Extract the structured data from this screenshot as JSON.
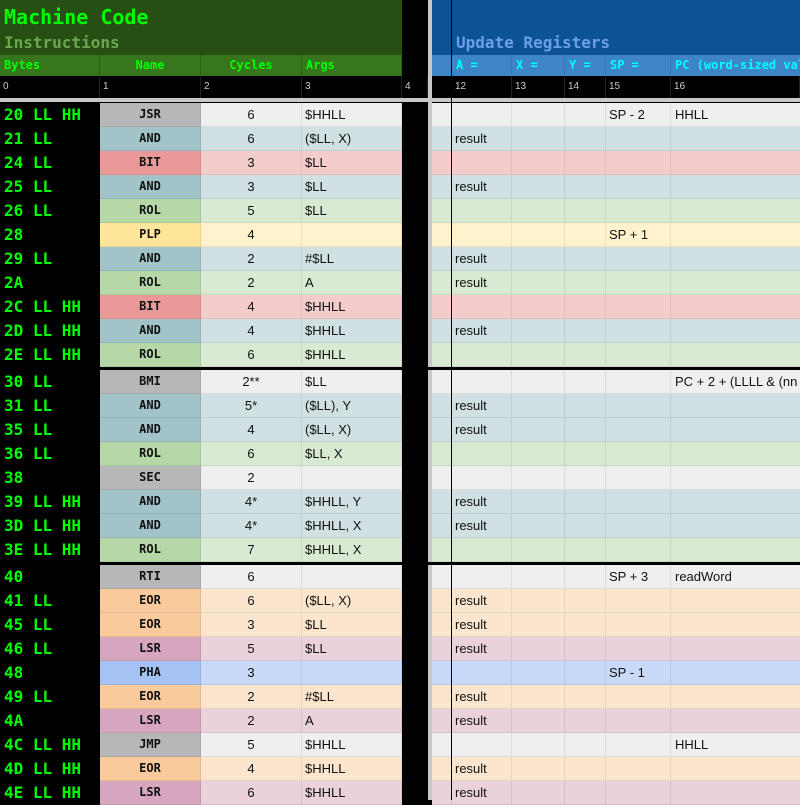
{
  "header": {
    "title": "Machine Code",
    "left_subtitle": "Instructions",
    "right_subtitle": "Update Registers",
    "columns_left": [
      "Bytes",
      "Name",
      "Cycles",
      "Args"
    ],
    "columns_right": [
      "A =",
      "X =",
      "Y =",
      "SP =",
      "PC (word-sized val"
    ],
    "column_indices": [
      "0",
      "1",
      "2",
      "3",
      "4",
      "12",
      "13",
      "14",
      "15",
      "16"
    ]
  },
  "colors": {
    "gray": [
      "#b7b7b7",
      "#efefef"
    ],
    "teal": [
      "#a2c4c9",
      "#d0e0e3"
    ],
    "red": [
      "#ea9999",
      "#f4cccc"
    ],
    "green": [
      "#b6d7a8",
      "#d9ead3"
    ],
    "yellow": [
      "#ffe599",
      "#fff2cc"
    ],
    "orange": [
      "#f9cb9c",
      "#fce5cd"
    ],
    "pink": [
      "#d5a6bd",
      "#ead1dc"
    ],
    "blue": [
      "#a4c2f4",
      "#c9daf8"
    ]
  },
  "rows": [
    {
      "bytes": "20 LL HH",
      "name": "JSR",
      "cycles": "6",
      "args": "$HHLL",
      "a": "",
      "x": "",
      "y": "",
      "sp": "SP - 2",
      "pc": "HHLL",
      "color": "gray"
    },
    {
      "bytes": "21 LL",
      "name": "AND",
      "cycles": "6",
      "args": "($LL, X)",
      "a": "result",
      "x": "",
      "y": "",
      "sp": "",
      "pc": "",
      "color": "teal"
    },
    {
      "bytes": "24 LL",
      "name": "BIT",
      "cycles": "3",
      "args": "$LL",
      "a": "",
      "x": "",
      "y": "",
      "sp": "",
      "pc": "",
      "color": "red"
    },
    {
      "bytes": "25 LL",
      "name": "AND",
      "cycles": "3",
      "args": "$LL",
      "a": "result",
      "x": "",
      "y": "",
      "sp": "",
      "pc": "",
      "color": "teal"
    },
    {
      "bytes": "26 LL",
      "name": "ROL",
      "cycles": "5",
      "args": "$LL",
      "a": "",
      "x": "",
      "y": "",
      "sp": "",
      "pc": "",
      "color": "green"
    },
    {
      "bytes": "28",
      "name": "PLP",
      "cycles": "4",
      "args": "",
      "a": "",
      "x": "",
      "y": "",
      "sp": "SP + 1",
      "pc": "",
      "color": "yellow"
    },
    {
      "bytes": "29 LL",
      "name": "AND",
      "cycles": "2",
      "args": "#$LL",
      "a": "result",
      "x": "",
      "y": "",
      "sp": "",
      "pc": "",
      "color": "teal"
    },
    {
      "bytes": "2A",
      "name": "ROL",
      "cycles": "2",
      "args": "A",
      "a": "result",
      "x": "",
      "y": "",
      "sp": "",
      "pc": "",
      "color": "green"
    },
    {
      "bytes": "2C LL HH",
      "name": "BIT",
      "cycles": "4",
      "args": "$HHLL",
      "a": "",
      "x": "",
      "y": "",
      "sp": "",
      "pc": "",
      "color": "red"
    },
    {
      "bytes": "2D LL HH",
      "name": "AND",
      "cycles": "4",
      "args": "$HHLL",
      "a": "result",
      "x": "",
      "y": "",
      "sp": "",
      "pc": "",
      "color": "teal"
    },
    {
      "bytes": "2E LL HH",
      "name": "ROL",
      "cycles": "6",
      "args": "$HHLL",
      "a": "",
      "x": "",
      "y": "",
      "sp": "",
      "pc": "",
      "color": "green"
    },
    {
      "bytes": "30 LL",
      "name": "BMI",
      "cycles": "2**",
      "args": "$LL",
      "a": "",
      "x": "",
      "y": "",
      "sp": "",
      "pc": "PC + 2 + (LLLL & (nn",
      "color": "gray"
    },
    {
      "bytes": "31 LL",
      "name": "AND",
      "cycles": "5*",
      "args": "($LL), Y",
      "a": "result",
      "x": "",
      "y": "",
      "sp": "",
      "pc": "",
      "color": "teal"
    },
    {
      "bytes": "35 LL",
      "name": "AND",
      "cycles": "4",
      "args": "($LL, X)",
      "a": "result",
      "x": "",
      "y": "",
      "sp": "",
      "pc": "",
      "color": "teal"
    },
    {
      "bytes": "36 LL",
      "name": "ROL",
      "cycles": "6",
      "args": "$LL, X",
      "a": "",
      "x": "",
      "y": "",
      "sp": "",
      "pc": "",
      "color": "green"
    },
    {
      "bytes": "38",
      "name": "SEC",
      "cycles": "2",
      "args": "",
      "a": "",
      "x": "",
      "y": "",
      "sp": "",
      "pc": "",
      "color": "gray"
    },
    {
      "bytes": "39 LL HH",
      "name": "AND",
      "cycles": "4*",
      "args": "$HHLL, Y",
      "a": "result",
      "x": "",
      "y": "",
      "sp": "",
      "pc": "",
      "color": "teal"
    },
    {
      "bytes": "3D LL HH",
      "name": "AND",
      "cycles": "4*",
      "args": "$HHLL, X",
      "a": "result",
      "x": "",
      "y": "",
      "sp": "",
      "pc": "",
      "color": "teal"
    },
    {
      "bytes": "3E LL HH",
      "name": "ROL",
      "cycles": "7",
      "args": "$HHLL, X",
      "a": "",
      "x": "",
      "y": "",
      "sp": "",
      "pc": "",
      "color": "green"
    },
    {
      "bytes": "40",
      "name": "RTI",
      "cycles": "6",
      "args": "",
      "a": "",
      "x": "",
      "y": "",
      "sp": "SP + 3",
      "pc": "readWord",
      "color": "gray"
    },
    {
      "bytes": "41 LL",
      "name": "EOR",
      "cycles": "6",
      "args": "($LL, X)",
      "a": "result",
      "x": "",
      "y": "",
      "sp": "",
      "pc": "",
      "color": "orange"
    },
    {
      "bytes": "45 LL",
      "name": "EOR",
      "cycles": "3",
      "args": "$LL",
      "a": "result",
      "x": "",
      "y": "",
      "sp": "",
      "pc": "",
      "color": "orange"
    },
    {
      "bytes": "46 LL",
      "name": "LSR",
      "cycles": "5",
      "args": "$LL",
      "a": "result",
      "x": "",
      "y": "",
      "sp": "",
      "pc": "",
      "color": "pink"
    },
    {
      "bytes": "48",
      "name": "PHA",
      "cycles": "3",
      "args": "",
      "a": "",
      "x": "",
      "y": "",
      "sp": "SP - 1",
      "pc": "",
      "color": "blue"
    },
    {
      "bytes": "49 LL",
      "name": "EOR",
      "cycles": "2",
      "args": "#$LL",
      "a": "result",
      "x": "",
      "y": "",
      "sp": "",
      "pc": "",
      "color": "orange"
    },
    {
      "bytes": "4A",
      "name": "LSR",
      "cycles": "2",
      "args": "A",
      "a": "result",
      "x": "",
      "y": "",
      "sp": "",
      "pc": "",
      "color": "pink"
    },
    {
      "bytes": "4C LL HH",
      "name": "JMP",
      "cycles": "5",
      "args": "$HHLL",
      "a": "",
      "x": "",
      "y": "",
      "sp": "",
      "pc": "HHLL",
      "color": "gray"
    },
    {
      "bytes": "4D LL HH",
      "name": "EOR",
      "cycles": "4",
      "args": "$HHLL",
      "a": "result",
      "x": "",
      "y": "",
      "sp": "",
      "pc": "",
      "color": "orange"
    },
    {
      "bytes": "4E LL HH",
      "name": "LSR",
      "cycles": "6",
      "args": "$HHLL",
      "a": "result",
      "x": "",
      "y": "",
      "sp": "",
      "pc": "",
      "color": "pink"
    }
  ]
}
